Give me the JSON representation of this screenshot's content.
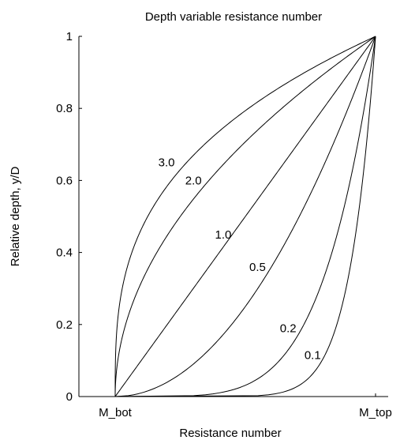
{
  "chart_data": {
    "type": "line",
    "title": "Depth variable resistance number",
    "xlabel": "Resistance number",
    "ylabel": "Relative depth, y/D",
    "xlim": [
      0,
      1
    ],
    "ylim": [
      0,
      1
    ],
    "x_ticks": [
      {
        "value": 0,
        "label": "M_bot"
      },
      {
        "value": 1,
        "label": "M_top"
      }
    ],
    "y_ticks": [
      {
        "value": 0,
        "label": "0"
      },
      {
        "value": 0.2,
        "label": "0.2"
      },
      {
        "value": 0.4,
        "label": "0.4"
      },
      {
        "value": 0.6,
        "label": "0.6"
      },
      {
        "value": 0.8,
        "label": "0.8"
      },
      {
        "value": 1,
        "label": "1"
      }
    ],
    "grid": false,
    "legend": "none",
    "series": [
      {
        "exponent": 3.0,
        "annotation": "3.0"
      },
      {
        "exponent": 2.0,
        "annotation": "2.0"
      },
      {
        "exponent": 1.0,
        "annotation": "1.0"
      },
      {
        "exponent": 0.5,
        "annotation": "0.5"
      },
      {
        "exponent": 0.2,
        "annotation": "0.2"
      },
      {
        "exponent": 0.1,
        "annotation": "0.1"
      }
    ]
  }
}
